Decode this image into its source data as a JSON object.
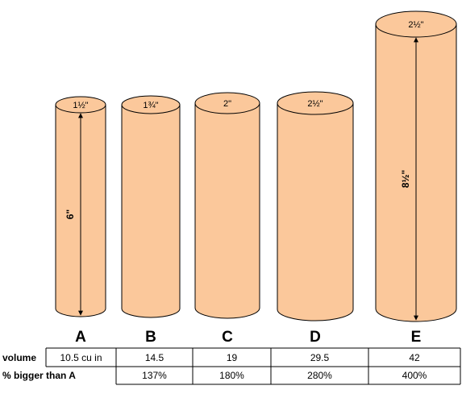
{
  "colors": {
    "cylinder_fill": "#fbc89b",
    "outline": "#000000"
  },
  "cylinders": [
    {
      "letter": "A",
      "diameter_label": "1½\"",
      "height_label": "6\"",
      "volume": "10.5 cu in",
      "percent_bigger": ""
    },
    {
      "letter": "B",
      "diameter_label": "1¾\"",
      "height_label": "",
      "volume": "14.5",
      "percent_bigger": "137%"
    },
    {
      "letter": "C",
      "diameter_label": "2\"",
      "height_label": "",
      "volume": "19",
      "percent_bigger": "180%"
    },
    {
      "letter": "D",
      "diameter_label": "2½\"",
      "height_label": "",
      "volume": "29.5",
      "percent_bigger": "280%"
    },
    {
      "letter": "E",
      "diameter_label": "2½\"",
      "height_label": "8½\"",
      "volume": "42",
      "percent_bigger": "400%"
    }
  ],
  "table": {
    "volume_label": "volume",
    "percent_label": "% bigger than A"
  }
}
